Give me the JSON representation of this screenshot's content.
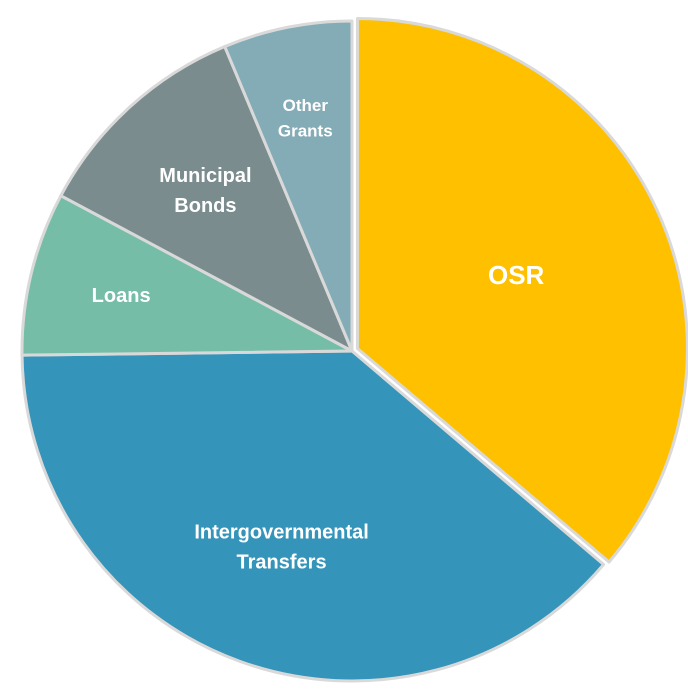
{
  "chart_data": {
    "type": "pie",
    "title": "",
    "legend": "none",
    "start_angle_deg": 0,
    "direction": "clockwise",
    "slices": [
      {
        "label": "OSR",
        "value": 36.2,
        "color": "#FFC000",
        "lines": [
          "OSR"
        ],
        "exploded": true,
        "label_size": 26
      },
      {
        "label": "Intergovernmental Transfers",
        "value": 38.6,
        "color": "#3494BA",
        "lines": [
          "Intergovernmental",
          "Transfers"
        ],
        "exploded": false,
        "label_size": 20
      },
      {
        "label": "Loans",
        "value": 8.0,
        "color": "#75BDA7",
        "lines": [
          "Loans"
        ],
        "exploded": false,
        "label_size": 20
      },
      {
        "label": "Municipal Bonds",
        "value": 10.9,
        "color": "#7A8C8E",
        "lines": [
          "Municipal",
          "Bonds"
        ],
        "exploded": false,
        "label_size": 20
      },
      {
        "label": "Other Grants",
        "value": 6.3,
        "color": "#84ACB6",
        "lines": [
          "Other",
          "Grants"
        ],
        "exploded": false,
        "label_size": 17
      }
    ]
  }
}
